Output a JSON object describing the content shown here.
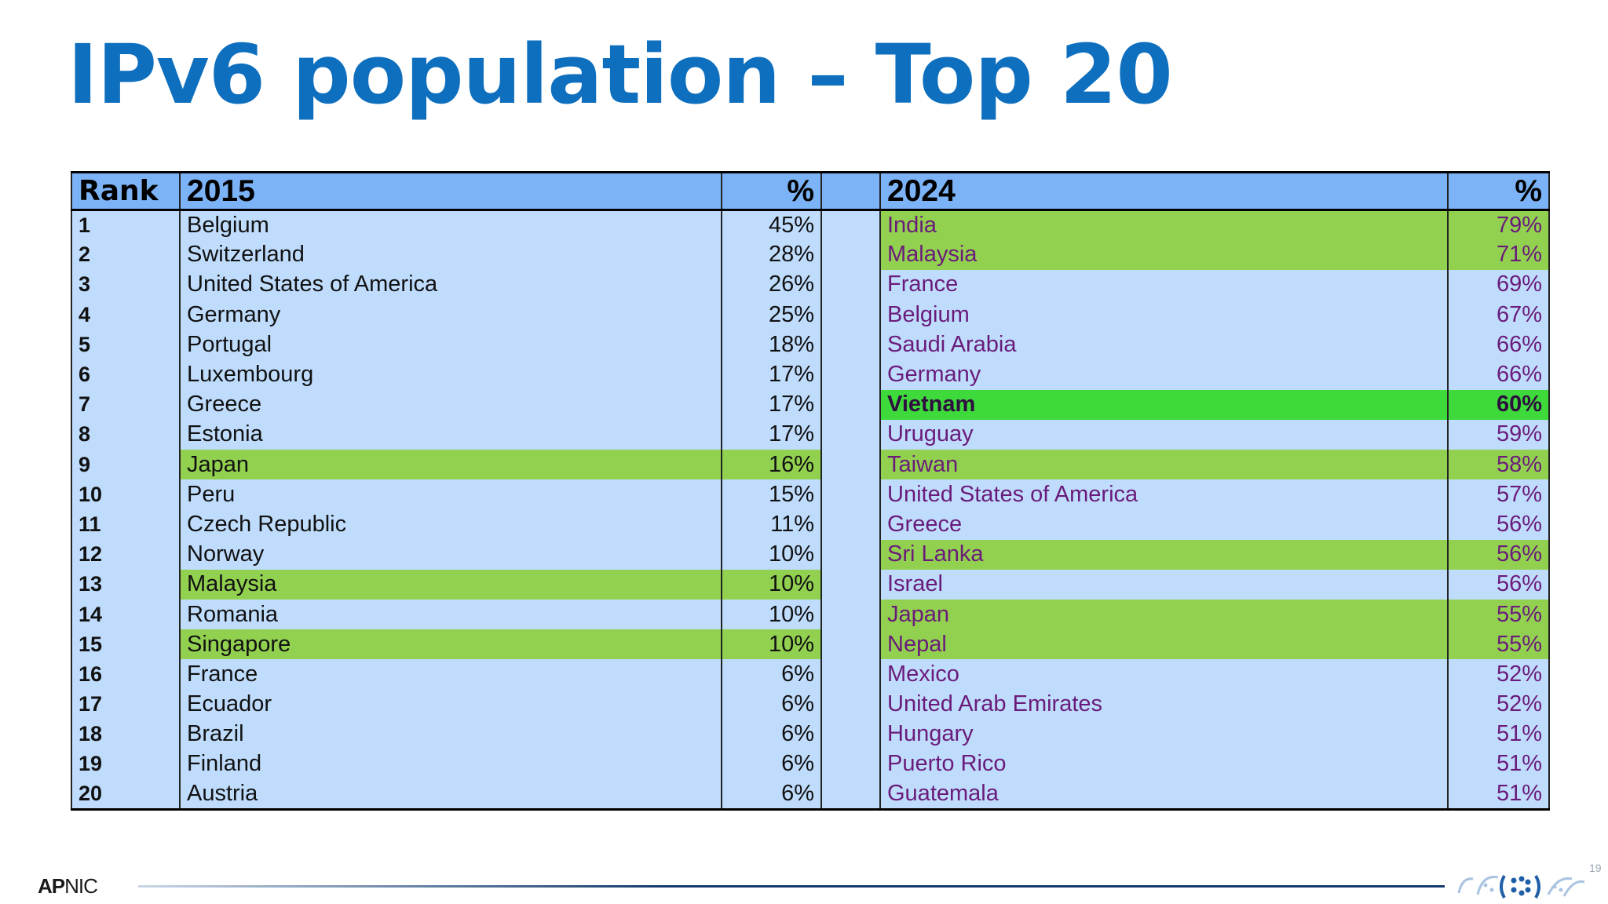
{
  "title": "IPv6 population – Top 20",
  "table": {
    "headers": {
      "rank": "Rank",
      "year1": "2015",
      "pct1": "%",
      "year2": "2024",
      "pct2": "%"
    },
    "rows": [
      {
        "rank": "1",
        "c1": "Belgium",
        "p1": "45%",
        "c2": "India",
        "p2": "79%"
      },
      {
        "rank": "2",
        "c1": "Switzerland",
        "p1": "28%",
        "c2": "Malaysia",
        "p2": "71%"
      },
      {
        "rank": "3",
        "c1": "United States of America",
        "p1": "26%",
        "c2": "France",
        "p2": "69%"
      },
      {
        "rank": "4",
        "c1": "Germany",
        "p1": "25%",
        "c2": "Belgium",
        "p2": "67%"
      },
      {
        "rank": "5",
        "c1": "Portugal",
        "p1": "18%",
        "c2": "Saudi Arabia",
        "p2": "66%"
      },
      {
        "rank": "6",
        "c1": "Luxembourg",
        "p1": "17%",
        "c2": "Germany",
        "p2": "66%"
      },
      {
        "rank": "7",
        "c1": "Greece",
        "p1": "17%",
        "c2": "Vietnam",
        "p2": "60%"
      },
      {
        "rank": "8",
        "c1": "Estonia",
        "p1": "17%",
        "c2": "Uruguay",
        "p2": "59%"
      },
      {
        "rank": "9",
        "c1": "Japan",
        "p1": "16%",
        "c2": "Taiwan",
        "p2": "58%"
      },
      {
        "rank": "10",
        "c1": "Peru",
        "p1": "15%",
        "c2": "United States of America",
        "p2": "57%"
      },
      {
        "rank": "11",
        "c1": "Czech Republic",
        "p1": "11%",
        "c2": "Greece",
        "p2": "56%"
      },
      {
        "rank": "12",
        "c1": "Norway",
        "p1": "10%",
        "c2": "Sri Lanka",
        "p2": "56%"
      },
      {
        "rank": "13",
        "c1": "Malaysia",
        "p1": "10%",
        "c2": "Israel",
        "p2": "56%"
      },
      {
        "rank": "14",
        "c1": "Romania",
        "p1": "10%",
        "c2": "Japan",
        "p2": "55%"
      },
      {
        "rank": "15",
        "c1": "Singapore",
        "p1": "10%",
        "c2": "Nepal",
        "p2": "55%"
      },
      {
        "rank": "16",
        "c1": "France",
        "p1": "6%",
        "c2": "Mexico",
        "p2": "52%"
      },
      {
        "rank": "17",
        "c1": "Ecuador",
        "p1": "6%",
        "c2": "United Arab Emirates",
        "p2": "52%"
      },
      {
        "rank": "18",
        "c1": "Brazil",
        "p1": "6%",
        "c2": "Hungary",
        "p2": "51%"
      },
      {
        "rank": "19",
        "c1": "Finland",
        "p1": "6%",
        "c2": "Puerto Rico",
        "p2": "51%"
      },
      {
        "rank": "20",
        "c1": "Austria",
        "p1": "6%",
        "c2": "Guatemala",
        "p2": "51%"
      }
    ]
  },
  "colors": {
    "title": "#0e6fbe",
    "header_bg": "#7cb3f7",
    "row_bg": "#bfdcfd",
    "highlight": "#92d050",
    "highlight_strong": "#3ed93a",
    "col2_text": "#6a1b7a"
  },
  "footer": {
    "logo_bold": "AP",
    "logo_rest": "NIC",
    "page_number": "19",
    "icon": "ipv6-logo-icon"
  }
}
